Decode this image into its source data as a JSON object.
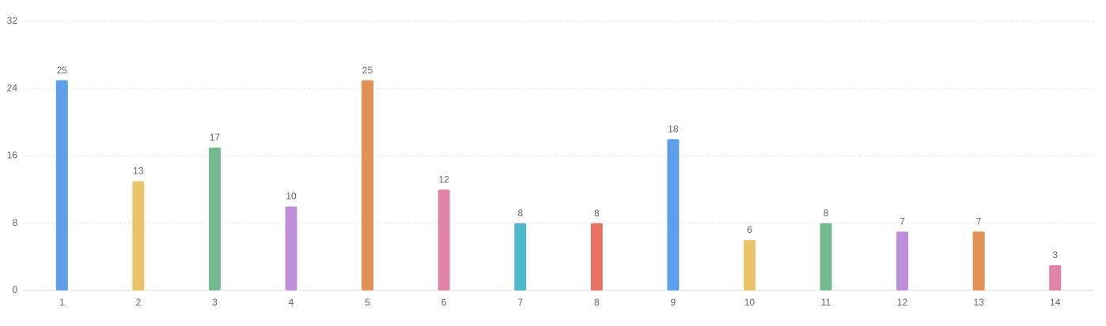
{
  "chart_data": {
    "type": "bar",
    "categories": [
      "1",
      "2",
      "3",
      "4",
      "5",
      "6",
      "7",
      "8",
      "9",
      "10",
      "11",
      "12",
      "13",
      "14"
    ],
    "values": [
      25,
      13,
      17,
      10,
      25,
      12,
      8,
      8,
      18,
      6,
      8,
      7,
      7,
      3
    ],
    "colors": [
      "#5e9fe9",
      "#e9c46b",
      "#73bb8e",
      "#be90dc",
      "#e09153",
      "#e085a5",
      "#4fb8c8",
      "#e77164",
      "#5e9fe9",
      "#e9c46b",
      "#73bb8e",
      "#be90dc",
      "#e09153",
      "#e085a5"
    ],
    "ylim": [
      0,
      32
    ],
    "yticks": [
      0,
      8,
      16,
      24,
      32
    ],
    "grid": true
  }
}
